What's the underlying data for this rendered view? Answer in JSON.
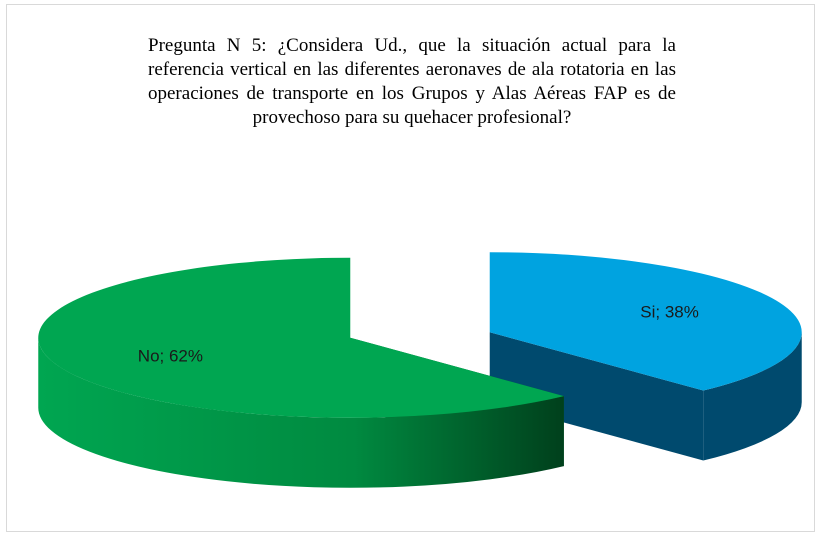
{
  "chart_data": {
    "type": "pie3d",
    "title": "Pregunta N 5: ¿Considera Ud., que la situación actual para la referencia vertical en las diferentes aeronaves de ala rotatoria en las operaciones de transporte en los Grupos y Alas Aéreas FAP es de provechoso para su quehacer profesional?",
    "values": [
      38,
      62
    ],
    "value_labels": [
      "Si; 38%",
      "No; 62%"
    ],
    "colors": [
      "#00a3e0",
      "#00a651"
    ],
    "side_colors": [
      "#004a6e",
      "#00662f"
    ]
  }
}
